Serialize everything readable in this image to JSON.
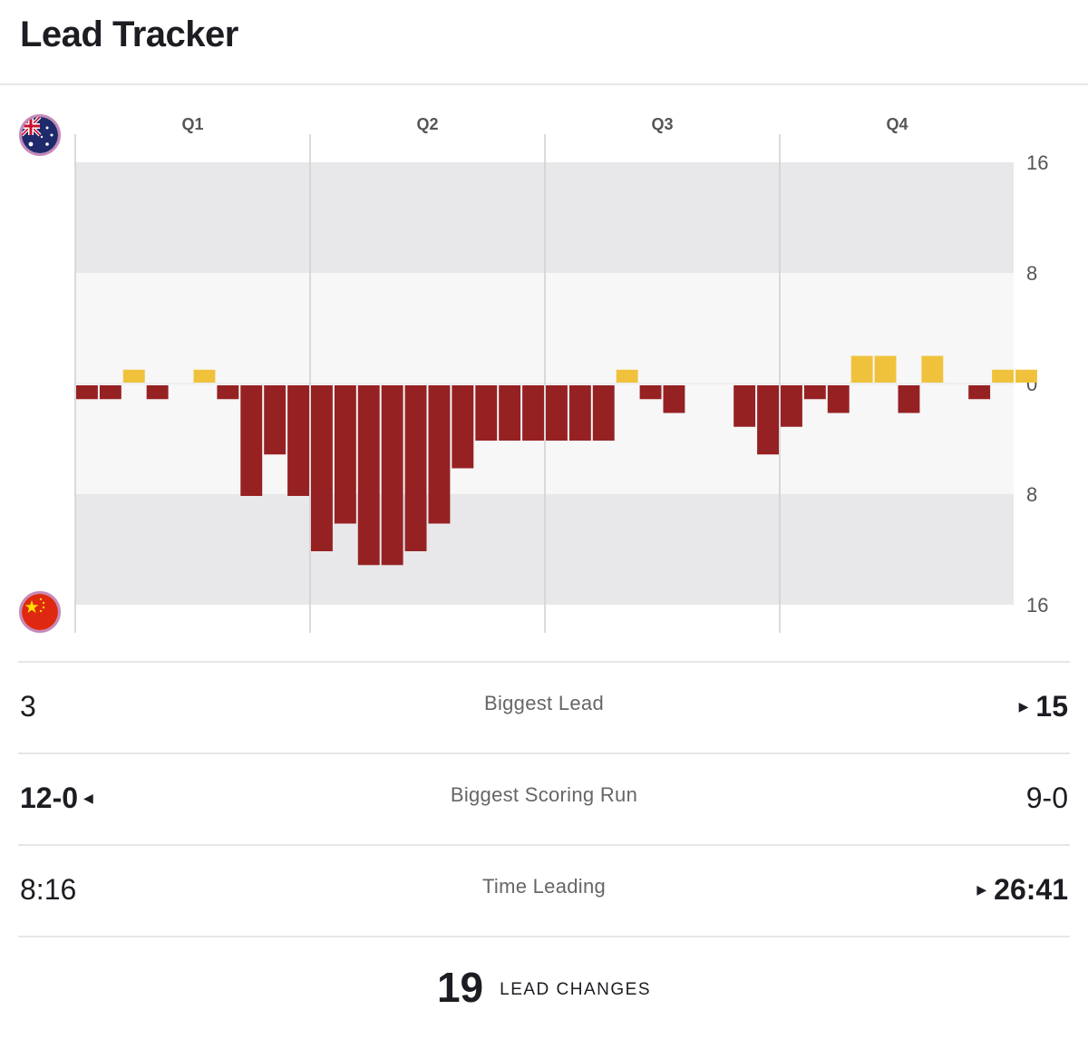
{
  "header": {
    "title": "Lead Tracker"
  },
  "teams": {
    "top": {
      "flag_icon": "australia-flag-icon",
      "color": "#f0c23c"
    },
    "bottom": {
      "flag_icon": "china-flag-icon",
      "color": "#962123"
    }
  },
  "chart_data": {
    "type": "bar",
    "title": "Lead Tracker",
    "quarters": [
      "Q1",
      "Q2",
      "Q3",
      "Q4"
    ],
    "y_tick_labels": [
      "16",
      "8",
      "0",
      "8",
      "16"
    ],
    "ylim": [
      -16,
      16
    ],
    "grid": true,
    "bars_per_quarter": 10,
    "series": [
      {
        "values": [
          -1,
          -1,
          1,
          -1,
          0,
          1,
          -1,
          -8,
          -5,
          -8,
          -12,
          -10,
          -13,
          -13,
          -12,
          -10,
          -6,
          -4,
          -4,
          -4,
          -4,
          -4,
          -4,
          1,
          -1,
          -2,
          0,
          0,
          -3,
          -5,
          -3,
          -1,
          -2,
          2,
          2,
          -2,
          2,
          0,
          -1,
          1
        ]
      }
    ],
    "extra_bar_values": [
      1
    ]
  },
  "stats": [
    {
      "label": "Biggest Lead",
      "left": "3",
      "right": "15",
      "leader": "right"
    },
    {
      "label": "Biggest Scoring Run",
      "left": "12-0",
      "right": "9-0",
      "leader": "left"
    },
    {
      "label": "Time Leading",
      "left": "8:16",
      "right": "26:41",
      "leader": "right"
    }
  ],
  "lead_changes": {
    "count": "19",
    "label": "LEAD CHANGES"
  }
}
